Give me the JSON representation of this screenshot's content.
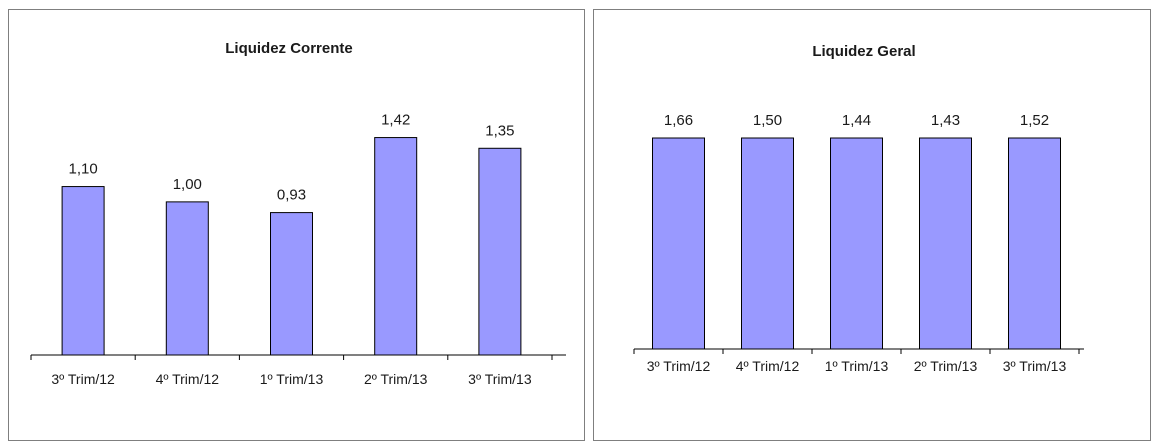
{
  "chart_data": [
    {
      "type": "bar",
      "title": "Liquidez Corrente",
      "categories": [
        "3º Trim/12",
        "4º Trim/12",
        "1º Trim/13",
        "2º Trim/13",
        "3º Trim/13"
      ],
      "values": [
        1.1,
        1.0,
        0.93,
        1.42,
        1.35
      ],
      "value_labels": [
        "1,10",
        "1,00",
        "0,93",
        "1,42",
        "1,35"
      ],
      "ylim": [
        0,
        1.6
      ],
      "xlabel": "",
      "ylabel": "",
      "grid": false,
      "bar_color": "#9999ff"
    },
    {
      "type": "bar",
      "title": "Liquidez Geral",
      "categories": [
        "3º Trim/12",
        "4º Trim/12",
        "1º Trim/13",
        "2º Trim/13",
        "3º Trim/13"
      ],
      "values": [
        1.66,
        1.5,
        1.44,
        1.43,
        1.52
      ],
      "value_labels": [
        "1,66",
        "1,50",
        "1,44",
        "1,43",
        "1,52"
      ],
      "xlabel": "",
      "ylabel": "",
      "grid": false,
      "bar_color": "#9999ff",
      "note": "bars drawn at equal height"
    }
  ]
}
